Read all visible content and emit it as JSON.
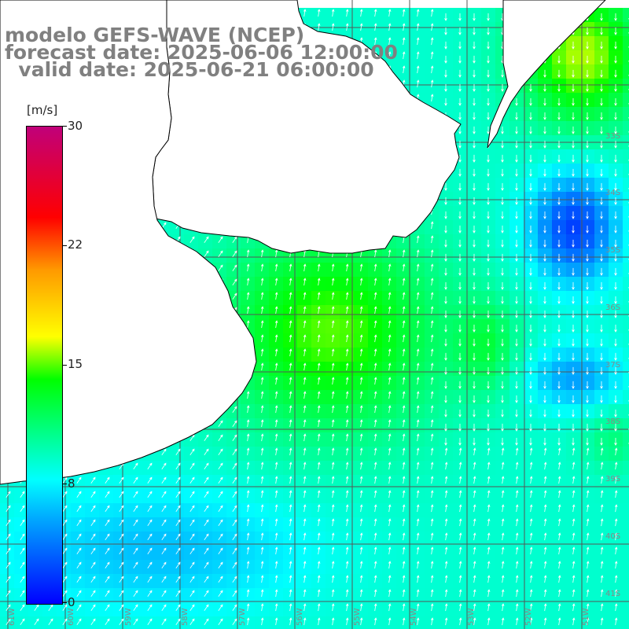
{
  "header": {
    "model": "modelo GEFS-WAVE (NCEP)",
    "forecast": "forecast date: 2025-06-06 12:00:00",
    "valid": "  valid date: 2025-06-21 06:00:00"
  },
  "colorbar": {
    "unit": "[m/s]",
    "ticks": [
      "30",
      "22",
      "15",
      "8",
      "0"
    ],
    "colors": [
      "#0000ff",
      "#00aaff",
      "#00ffff",
      "#00ff00",
      "#ffff00",
      "#ff9900",
      "#ff0000",
      "#c0007a"
    ]
  },
  "map": {
    "lon_labels": [
      "61W",
      "60W",
      "59W",
      "58W",
      "57W",
      "56W",
      "55W",
      "54W",
      "53W",
      "52W",
      "51W"
    ],
    "lat_labels": [
      "33S",
      "34S",
      "35S",
      "36S",
      "37S",
      "38S",
      "39S",
      "40S",
      "41S"
    ],
    "land_color": "#ffffff",
    "grid_color": "#000000"
  }
}
